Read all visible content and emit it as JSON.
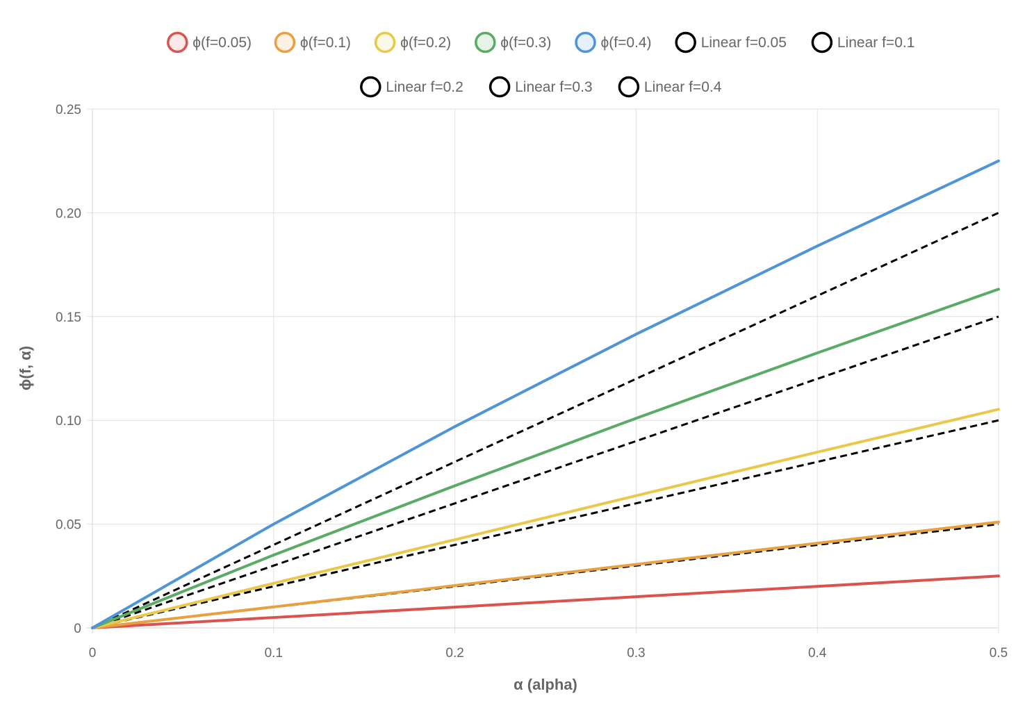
{
  "chart_data": {
    "type": "line",
    "title": "",
    "xlabel": "α (alpha)",
    "ylabel": "ϕ(f, α)",
    "xlim": [
      0,
      0.5
    ],
    "ylim": [
      0,
      0.25
    ],
    "x_ticks": [
      0,
      0.1,
      0.2,
      0.3,
      0.4,
      0.5
    ],
    "x_tick_labels": [
      "0",
      "0.1",
      "0.2",
      "0.3",
      "0.4",
      "0.5"
    ],
    "y_ticks": [
      0,
      0.05,
      0.1,
      0.15,
      0.2,
      0.25
    ],
    "y_tick_labels": [
      "0",
      "0.05",
      "0.10",
      "0.15",
      "0.20",
      "0.25"
    ],
    "grid": true,
    "legend_position": "top-center",
    "series": [
      {
        "name": "ϕ(f=0.05)",
        "color": "#d9534f",
        "fill": "#fbe9e7",
        "dashed": false,
        "x": [
          0,
          0.1,
          0.2,
          0.3,
          0.4,
          0.5
        ],
        "y": [
          0,
          0.005,
          0.01,
          0.015,
          0.02,
          0.025
        ]
      },
      {
        "name": "ϕ(f=0.1)",
        "color": "#e8a040",
        "fill": "#fdf1e3",
        "dashed": false,
        "x": [
          0,
          0.1,
          0.2,
          0.3,
          0.4,
          0.5
        ],
        "y": [
          0,
          0.0101,
          0.0204,
          0.0306,
          0.0408,
          0.051
        ]
      },
      {
        "name": "ϕ(f=0.2)",
        "color": "#e9c94a",
        "fill": "#fcf8e6",
        "dashed": false,
        "x": [
          0,
          0.1,
          0.2,
          0.3,
          0.4,
          0.5
        ],
        "y": [
          0,
          0.0215,
          0.0425,
          0.0637,
          0.0847,
          0.1053
        ]
      },
      {
        "name": "ϕ(f=0.3)",
        "color": "#5aab65",
        "fill": "#e6f3e8",
        "dashed": false,
        "x": [
          0,
          0.1,
          0.2,
          0.3,
          0.4,
          0.5
        ],
        "y": [
          0,
          0.0351,
          0.0685,
          0.101,
          0.1325,
          0.1632
        ]
      },
      {
        "name": "ϕ(f=0.4)",
        "color": "#4f95d6",
        "fill": "#e6f0fa",
        "dashed": false,
        "x": [
          0,
          0.1,
          0.2,
          0.3,
          0.4,
          0.5
        ],
        "y": [
          0,
          0.05,
          0.097,
          0.1415,
          0.184,
          0.225
        ]
      },
      {
        "name": "Linear f=0.05",
        "color": "#000000",
        "fill": "#ffffff",
        "dashed": true,
        "x": [
          0,
          0.5
        ],
        "y": [
          0,
          0.025
        ]
      },
      {
        "name": "Linear f=0.1",
        "color": "#000000",
        "fill": "#ffffff",
        "dashed": true,
        "x": [
          0,
          0.5
        ],
        "y": [
          0,
          0.05
        ]
      },
      {
        "name": "Linear f=0.2",
        "color": "#000000",
        "fill": "#ffffff",
        "dashed": true,
        "x": [
          0,
          0.5
        ],
        "y": [
          0,
          0.1
        ]
      },
      {
        "name": "Linear f=0.3",
        "color": "#000000",
        "fill": "#ffffff",
        "dashed": true,
        "x": [
          0,
          0.5
        ],
        "y": [
          0,
          0.15
        ]
      },
      {
        "name": "Linear f=0.4",
        "color": "#000000",
        "fill": "#ffffff",
        "dashed": true,
        "x": [
          0,
          0.5
        ],
        "y": [
          0,
          0.2
        ]
      }
    ]
  }
}
